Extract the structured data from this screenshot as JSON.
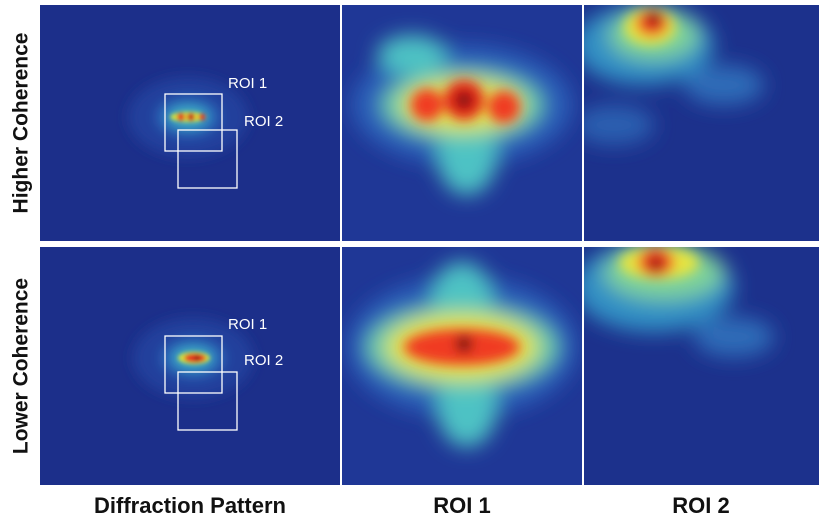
{
  "row_labels": [
    "Higher Coherence",
    "Lower Coherence"
  ],
  "column_labels": [
    "Diffraction Pattern",
    "ROI 1",
    "ROI 2"
  ],
  "panels": [
    {
      "roi_labels": [
        "ROI 1",
        "ROI 2"
      ]
    },
    {
      "roi_labels": [
        "ROI 1",
        "ROI 2"
      ]
    }
  ]
}
